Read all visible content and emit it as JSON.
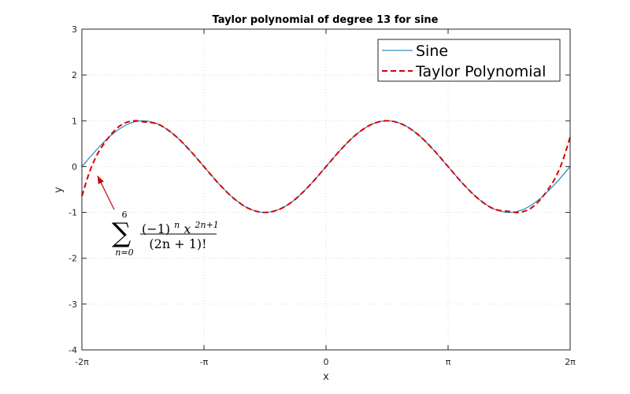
{
  "chart_data": {
    "type": "line",
    "title": "Taylor polynomial of degree 13 for sine",
    "xlabel": "x",
    "ylabel": "y",
    "xlim": [
      -6.283185,
      6.283185
    ],
    "ylim": [
      -4,
      3
    ],
    "grid": true,
    "legend_position": "top-right",
    "x_ticks": [
      {
        "value": -6.283185,
        "label": "-2π"
      },
      {
        "value": -3.141593,
        "label": "-π"
      },
      {
        "value": 0,
        "label": "0"
      },
      {
        "value": 3.141593,
        "label": "π"
      },
      {
        "value": 6.283185,
        "label": "2π"
      }
    ],
    "y_ticks": [
      {
        "value": 3,
        "label": "3"
      },
      {
        "value": 2,
        "label": "2"
      },
      {
        "value": 1,
        "label": "1"
      },
      {
        "value": 0,
        "label": "0"
      },
      {
        "value": -1,
        "label": "-1"
      },
      {
        "value": -2,
        "label": "-2"
      },
      {
        "value": -3,
        "label": "-3"
      },
      {
        "value": -4,
        "label": "-4"
      }
    ],
    "series": [
      {
        "name": "Sine",
        "color": "#0072bd",
        "style": "solid",
        "x": [
          -6.2832,
          -5.8905,
          -5.4978,
          -5.1051,
          -4.7124,
          -4.3197,
          -3.927,
          -3.5343,
          -3.1416,
          -2.7489,
          -2.3562,
          -1.9635,
          -1.5708,
          -1.1781,
          -0.7854,
          -0.3927,
          0,
          0.3927,
          0.7854,
          1.1781,
          1.5708,
          1.9635,
          2.3562,
          2.7489,
          3.1416,
          3.5343,
          3.927,
          4.3197,
          4.7124,
          5.1051,
          5.4978,
          5.8905,
          6.2832
        ],
        "y": [
          0,
          0.383,
          0.707,
          0.924,
          1,
          0.924,
          0.707,
          0.383,
          0,
          -0.383,
          -0.707,
          -0.924,
          -1,
          -0.924,
          -0.707,
          -0.383,
          0,
          0.383,
          0.707,
          0.924,
          1,
          0.924,
          0.707,
          0.383,
          0,
          -0.383,
          -0.707,
          -0.924,
          -1,
          -0.924,
          -0.707,
          -0.383,
          0
        ]
      },
      {
        "name": "Taylor Polynomial",
        "color": "#d90000",
        "style": "dashed",
        "x": [
          -6.2832,
          -6.0868,
          -5.8905,
          -5.6941,
          -5.4978,
          -5.3014,
          -5.1051,
          -4.9087,
          -4.7124,
          -4.3197,
          -3.927,
          -3.5343,
          -3.1416,
          -2.7489,
          -2.3562,
          -1.9635,
          -1.5708,
          -1.1781,
          -0.7854,
          -0.3927,
          0,
          0.3927,
          0.7854,
          1.1781,
          1.5708,
          1.9635,
          2.3562,
          2.7489,
          3.1416,
          3.5343,
          3.927,
          4.3197,
          4.7124,
          4.9087,
          5.1051,
          5.3014,
          5.4978,
          5.6941,
          5.8905,
          6.0868,
          6.2832
        ],
        "y": [
          -0.645,
          -0.117,
          0.262,
          0.524,
          0.735,
          0.892,
          0.974,
          1.0,
          0.979,
          0.924,
          0.707,
          0.383,
          0,
          -0.383,
          -0.707,
          -0.924,
          -1,
          -0.924,
          -0.707,
          -0.383,
          0,
          0.383,
          0.707,
          0.924,
          1,
          0.924,
          0.707,
          0.383,
          0,
          -0.383,
          -0.707,
          -0.924,
          -0.979,
          -1.0,
          -0.974,
          -0.892,
          -0.735,
          -0.524,
          -0.262,
          0.117,
          0.645
        ]
      }
    ],
    "annotation": {
      "text": "∑ from n=0 to 6 of (−1)^n x^(2n+1) / (2n+1)!",
      "sum_symbol": "∑",
      "upper_limit": "6",
      "lower_limit": "n=0",
      "numerator_base": "(−1)",
      "numerator_exp_n": "n",
      "numerator_x": "x",
      "numerator_exp": "2n+1",
      "denominator": "(2n + 1)!",
      "arrow_target": {
        "x": -5.88,
        "y": -0.2
      },
      "arrow_color": "#cc0000"
    }
  }
}
